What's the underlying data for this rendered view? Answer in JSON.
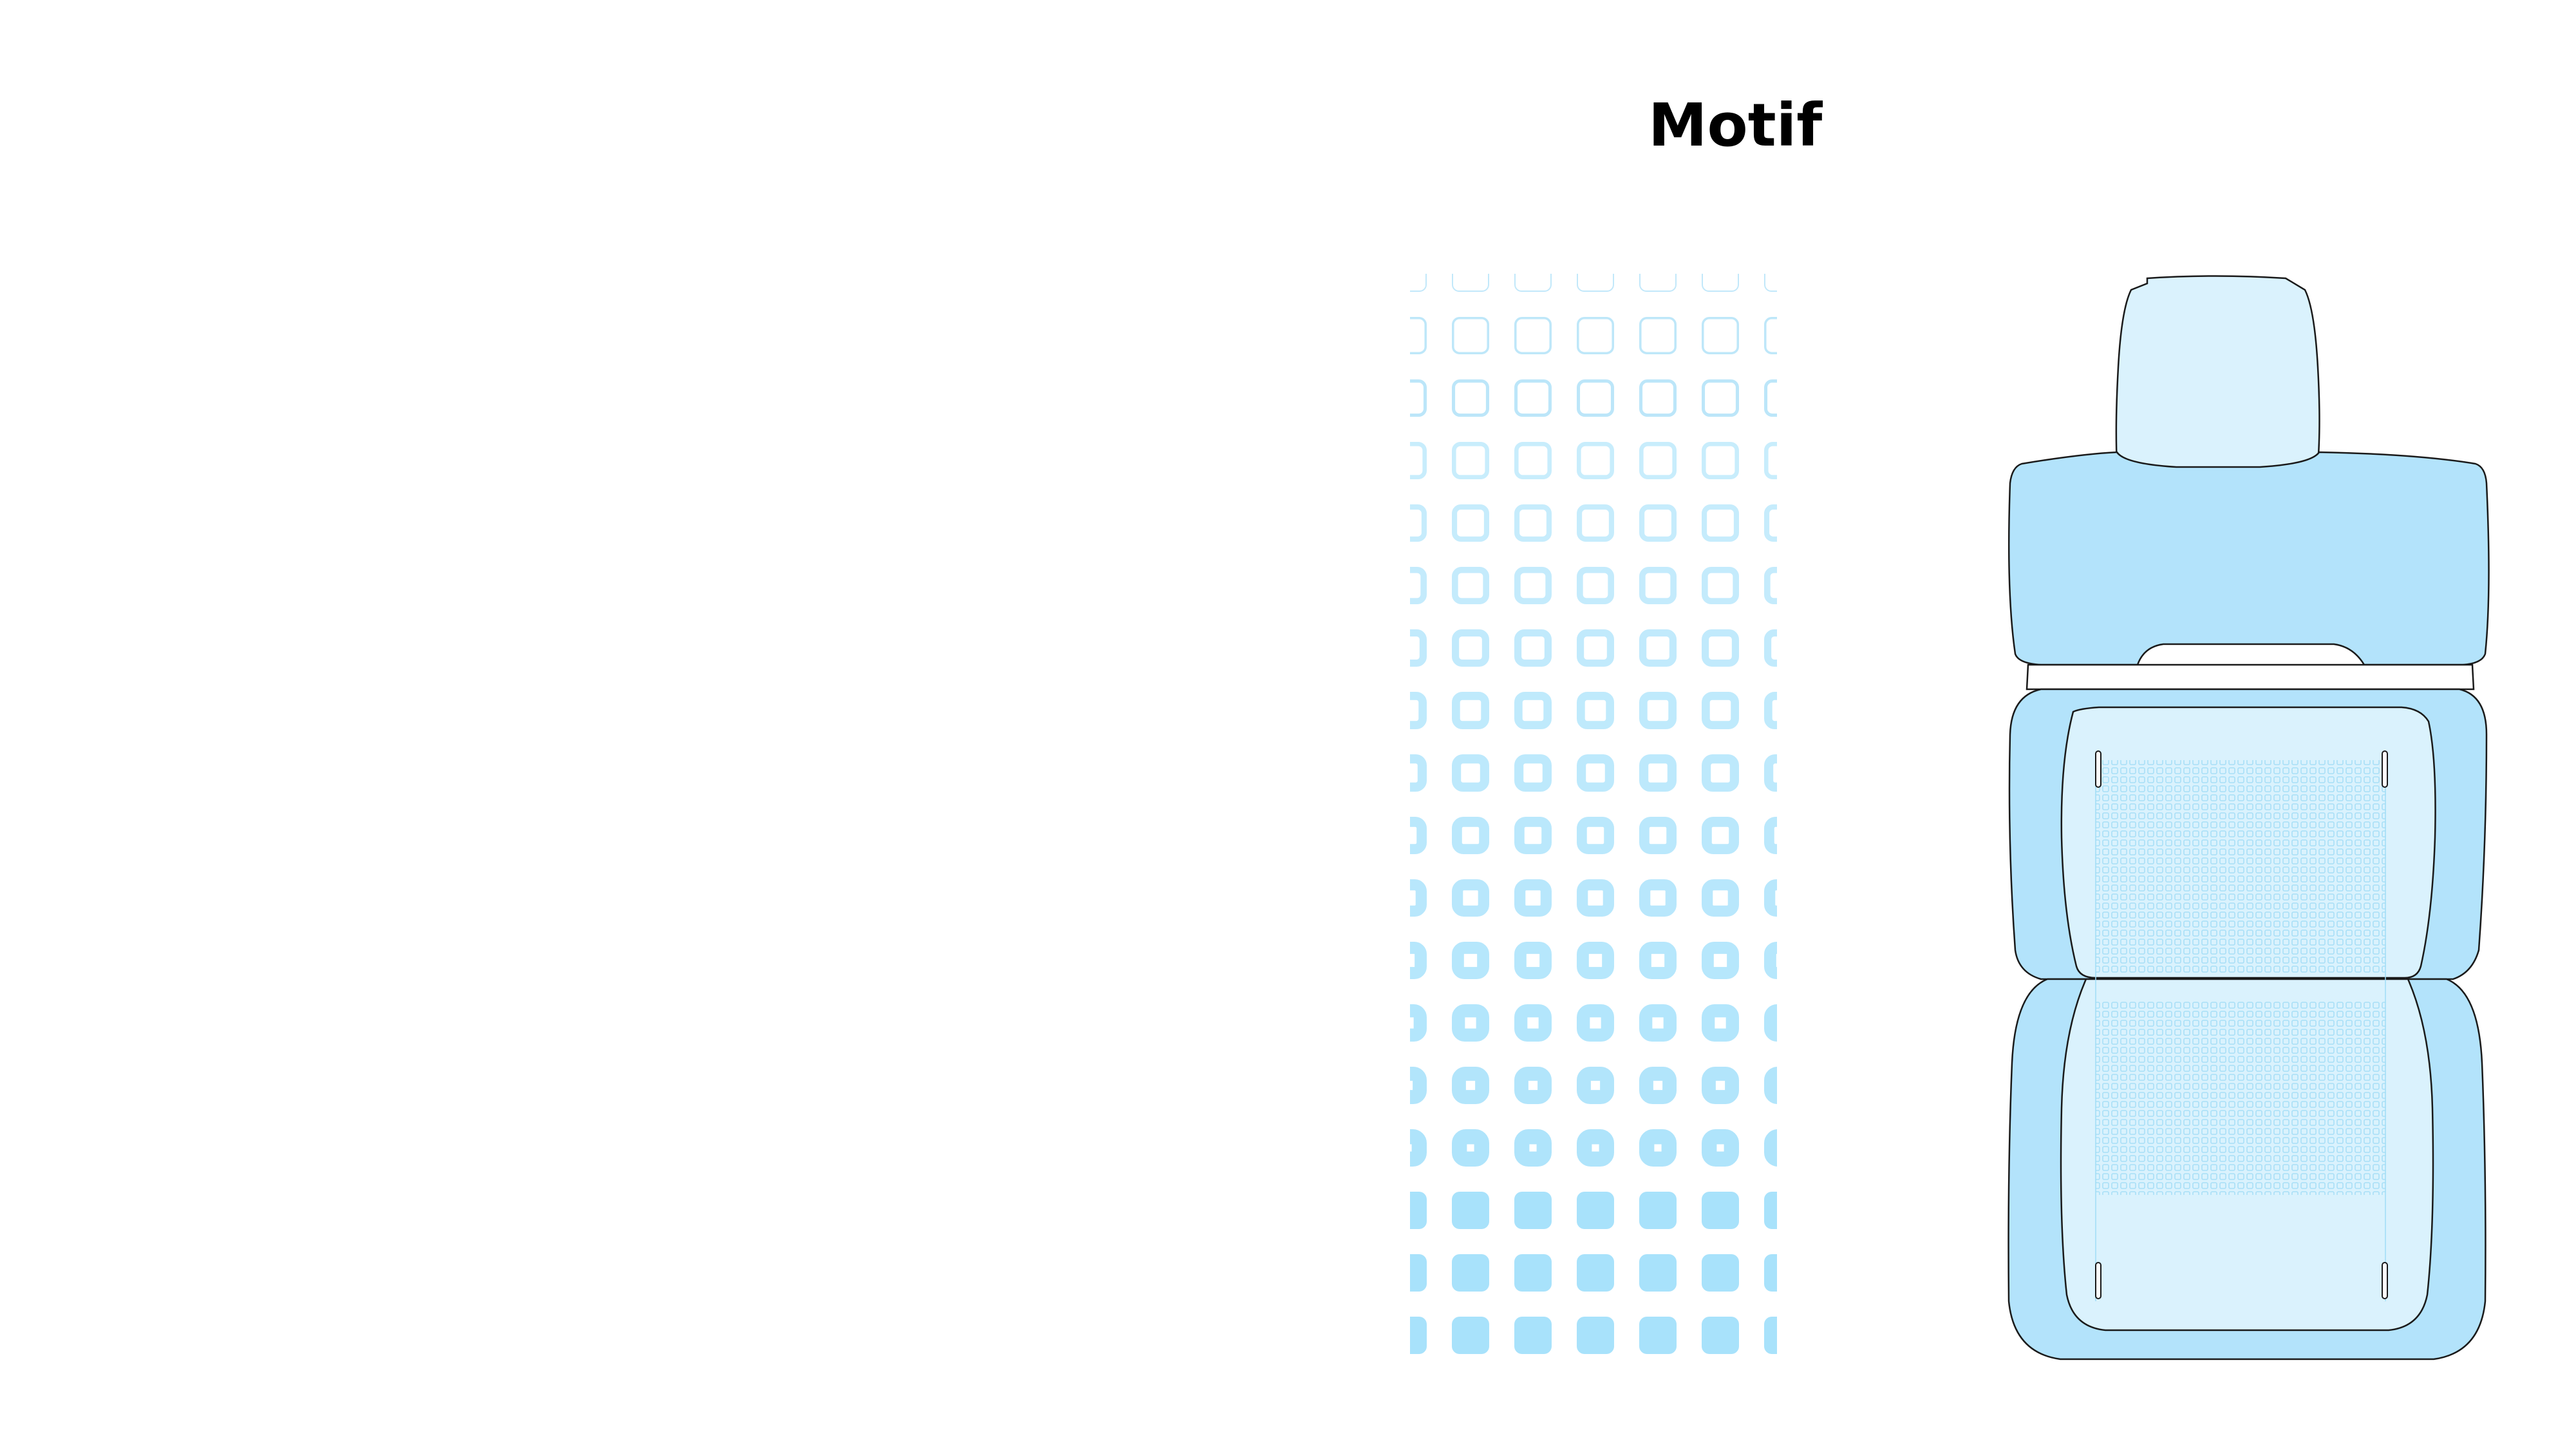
{
  "title": "Motif",
  "colors": {
    "motif_fill": "#a8e2fb",
    "motif_stroke": "#8fd6f5",
    "seat_outer": "#b3e3fb",
    "seat_inner": "#daf2fd",
    "seat_line": "#1a1a1a",
    "background": "#ffffff"
  },
  "motif": {
    "shape": "rounded-square",
    "columns": 7,
    "rows": 18,
    "gradient": "outline-to-solid",
    "gradient_direction": "top-to-bottom"
  },
  "seat": {
    "view": "top-down",
    "parts": [
      "headrest",
      "backrest",
      "seat-cushion"
    ]
  }
}
